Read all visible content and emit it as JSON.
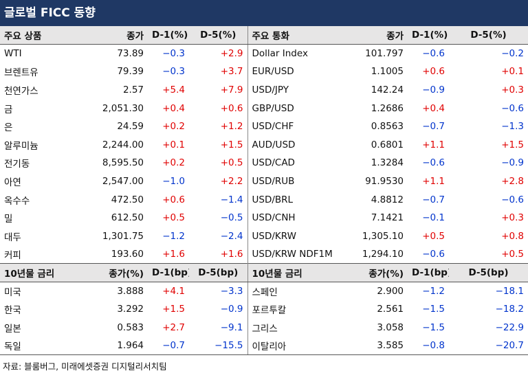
{
  "title": "글로벌 FICC 동향",
  "colors": {
    "header_bg": "#1f3864",
    "positive": "#e00000",
    "negative": "#0033cc"
  },
  "top_headers": {
    "left": [
      "주요 상품",
      "종가",
      "D-1(%)",
      "D-5(%)"
    ],
    "right": [
      "주요 통화",
      "종가",
      "D-1(%)",
      "D-5(%)"
    ]
  },
  "top_rows": [
    {
      "l": [
        "WTI",
        "73.89",
        "-0.3",
        "+2.9"
      ],
      "r": [
        "Dollar Index",
        "101.797",
        "-0.6",
        "-0.2"
      ]
    },
    {
      "l": [
        "브렌트유",
        "79.39",
        "-0.3",
        "+3.7"
      ],
      "r": [
        "EUR/USD",
        "1.1005",
        "+0.6",
        "+0.1"
      ]
    },
    {
      "l": [
        "천연가스",
        "2.57",
        "+5.4",
        "+7.9"
      ],
      "r": [
        "USD/JPY",
        "142.24",
        "-0.9",
        "+0.3"
      ]
    },
    {
      "l": [
        "금",
        "2,051.30",
        "+0.4",
        "+0.6"
      ],
      "r": [
        "GBP/USD",
        "1.2686",
        "+0.4",
        "-0.6"
      ]
    },
    {
      "l": [
        "은",
        "24.59",
        "+0.2",
        "+1.2"
      ],
      "r": [
        "USD/CHF",
        "0.8563",
        "-0.7",
        "-1.3"
      ]
    },
    {
      "l": [
        "알루미늄",
        "2,244.00",
        "+0.1",
        "+1.5"
      ],
      "r": [
        "AUD/USD",
        "0.6801",
        "+1.1",
        "+1.5"
      ]
    },
    {
      "l": [
        "전기동",
        "8,595.50",
        "+0.2",
        "+0.5"
      ],
      "r": [
        "USD/CAD",
        "1.3284",
        "-0.6",
        "-0.9"
      ]
    },
    {
      "l": [
        "아연",
        "2,547.00",
        "-1.0",
        "+2.2"
      ],
      "r": [
        "USD/RUB",
        "91.9530",
        "+1.1",
        "+2.8"
      ]
    },
    {
      "l": [
        "옥수수",
        "472.50",
        "+0.6",
        "-1.4"
      ],
      "r": [
        "USD/BRL",
        "4.8812",
        "-0.7",
        "-0.6"
      ]
    },
    {
      "l": [
        "밀",
        "612.50",
        "+0.5",
        "-0.5"
      ],
      "r": [
        "USD/CNH",
        "7.1421",
        "-0.1",
        "+0.3"
      ]
    },
    {
      "l": [
        "대두",
        "1,301.75",
        "-1.2",
        "-2.4"
      ],
      "r": [
        "USD/KRW",
        "1,305.10",
        "+0.5",
        "+0.8"
      ]
    },
    {
      "l": [
        "커피",
        "193.60",
        "+1.6",
        "+1.6"
      ],
      "r": [
        "USD/KRW NDF1M",
        "1,294.10",
        "-0.6",
        "+0.5"
      ]
    }
  ],
  "bond_headers": {
    "left": [
      "10년물 금리",
      "종가(%)",
      "D-1(bp)",
      "D-5(bp)"
    ],
    "right": [
      "10년물 금리",
      "종가(%)",
      "D-1(bp)",
      "D-5(bp)"
    ]
  },
  "bond_rows": [
    {
      "l": [
        "미국",
        "3.888",
        "+4.1",
        "-3.3"
      ],
      "r": [
        "스페인",
        "2.900",
        "-1.2",
        "-18.1"
      ]
    },
    {
      "l": [
        "한국",
        "3.292",
        "+1.5",
        "-0.9"
      ],
      "r": [
        "포르투칼",
        "2.561",
        "-1.5",
        "-18.2"
      ]
    },
    {
      "l": [
        "일본",
        "0.583",
        "+2.7",
        "-9.1"
      ],
      "r": [
        "그리스",
        "3.058",
        "-1.5",
        "-22.9"
      ]
    },
    {
      "l": [
        "독일",
        "1.964",
        "-0.7",
        "-15.5"
      ],
      "r": [
        "이탈리아",
        "3.585",
        "-0.8",
        "-20.7"
      ]
    }
  ],
  "source": "자료: 블룸버그, 미래에셋증권 디지털리서치팀"
}
